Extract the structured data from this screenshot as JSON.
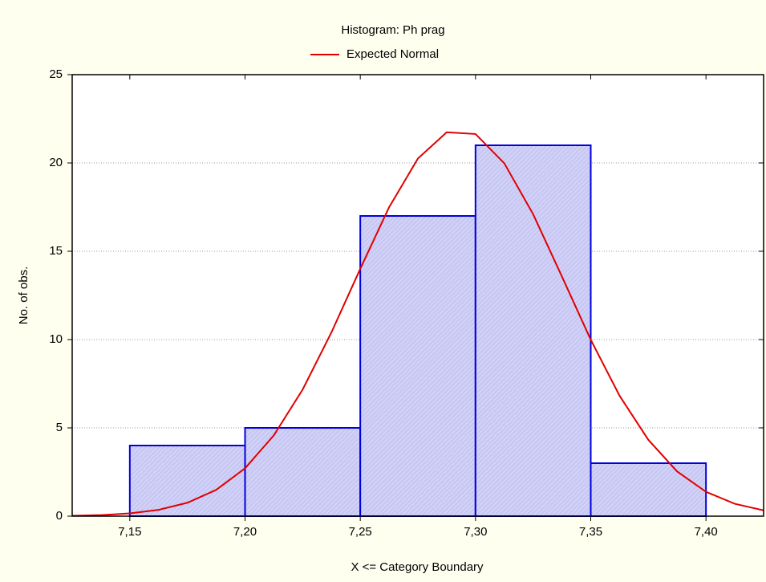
{
  "chart_data": {
    "type": "histogram",
    "title": "Histogram: Ph prag",
    "x_label": "X <= Category Boundary",
    "y_label": "No. of obs.",
    "bins": [
      7.15,
      7.2,
      7.25,
      7.3,
      7.35,
      7.4
    ],
    "values": [
      4,
      5,
      17,
      21,
      3
    ],
    "color": "#c8c8f4",
    "edge_color": "#0000e0",
    "series": [
      {
        "name": "Expected Normal",
        "type": "line",
        "color": "#e00000",
        "x": [
          7.125,
          7.1375,
          7.15,
          7.1625,
          7.175,
          7.1875,
          7.2,
          7.2125,
          7.225,
          7.2375,
          7.25,
          7.2625,
          7.275,
          7.2875,
          7.3,
          7.3125,
          7.325,
          7.3375,
          7.35,
          7.3625,
          7.375,
          7.3875,
          7.4,
          7.4125,
          7.425
        ],
        "values": [
          0.02,
          0.06,
          0.16,
          0.36,
          0.76,
          1.49,
          2.71,
          4.58,
          7.17,
          10.41,
          14.01,
          17.49,
          20.25,
          21.74,
          21.64,
          19.98,
          17.1,
          13.57,
          9.99,
          6.82,
          4.32,
          2.53,
          1.38,
          0.7,
          0.33
        ]
      }
    ],
    "xlim": [
      7.125,
      7.425
    ],
    "ylim": [
      0,
      25
    ],
    "xticks": [
      {
        "value": 7.15,
        "label": "7,15"
      },
      {
        "value": 7.2,
        "label": "7,20"
      },
      {
        "value": 7.25,
        "label": "7,25"
      },
      {
        "value": 7.3,
        "label": "7,30"
      },
      {
        "value": 7.35,
        "label": "7,35"
      },
      {
        "value": 7.4,
        "label": "7,40"
      }
    ],
    "yticks": [
      0,
      5,
      10,
      15,
      20,
      25
    ],
    "grid": true,
    "legend": "top"
  }
}
